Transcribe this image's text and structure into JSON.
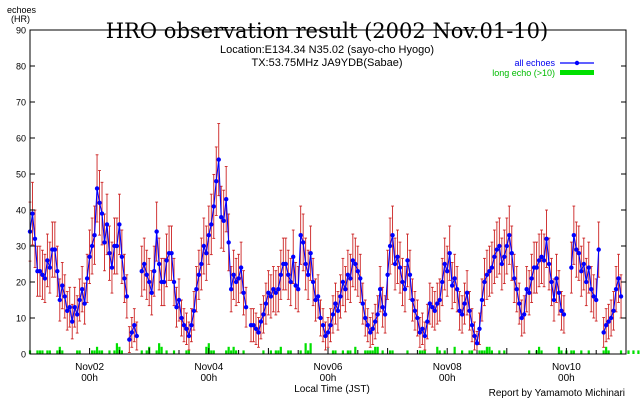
{
  "chart_data": {
    "type": "line",
    "title": "HRO observation result (2002 Nov.01-10)",
    "subtitle_lines": [
      "Location:E134.34 N35.02 (sayo-cho Hyogo)",
      "TX:53.75MHz JA9YDB(Sabae)"
    ],
    "ylabel_lines": [
      "echoes",
      "(HR)"
    ],
    "xlabel": "Local Time (JST)",
    "credit": "Report by Yamamoto Michinari",
    "ylim": [
      0,
      90
    ],
    "yticks": [
      0,
      10,
      20,
      30,
      40,
      50,
      60,
      70,
      80,
      90
    ],
    "xlim_hours": [
      0,
      240
    ],
    "xtick_labels": [
      {
        "hour": 24,
        "date": "Nov02",
        "time": "00h"
      },
      {
        "hour": 72,
        "date": "Nov04",
        "time": "00h"
      },
      {
        "hour": 120,
        "date": "Nov06",
        "time": "00h"
      },
      {
        "hour": 168,
        "date": "Nov08",
        "time": "00h"
      },
      {
        "hour": 216,
        "date": "Nov10",
        "time": "00h"
      }
    ],
    "legend_position": "top-right",
    "series": [
      {
        "name": "all echoes",
        "color": "#0000ff",
        "error_color": "#cc2222",
        "segments": [
          {
            "start_hour": 0,
            "values": [
              34,
              39,
              32,
              23,
              23,
              22,
              21,
              26,
              24,
              29,
              29,
              23,
              15,
              19,
              16,
              12,
              13,
              9,
              13,
              11,
              15,
              18,
              14,
              21,
              27,
              30,
              33,
              46,
              42,
              39,
              31,
              36,
              28,
              24,
              30,
              30,
              36,
              27,
              21,
              16
            ]
          },
          {
            "start_hour": 40,
            "values": [
              4,
              6,
              8,
              5
            ]
          },
          {
            "start_hour": 45,
            "values": [
              23,
              25,
              22,
              20,
              17,
              23,
              34,
              25,
              20,
              20,
              26,
              28,
              28,
              20,
              13,
              15,
              10,
              8,
              7,
              5,
              8,
              12,
              18,
              22,
              25,
              30,
              28,
              33,
              36,
              41,
              48,
              54,
              38,
              37,
              43,
              31,
              18,
              22,
              20,
              21,
              24,
              17,
              13
            ]
          },
          {
            "start_hour": 89,
            "values": [
              8,
              8,
              7,
              6,
              9,
              11,
              14,
              17,
              16,
              18,
              17,
              18,
              22,
              25,
              25,
              22,
              20,
              27,
              19,
              18,
              33,
              31,
              25,
              22,
              28,
              20,
              15,
              16,
              10
            ]
          },
          {
            "start_hour": 118,
            "values": [
              8,
              5,
              6,
              8,
              11,
              14,
              12,
              16,
              20,
              18,
              22,
              21,
              26,
              25,
              23,
              21,
              14,
              10,
              8,
              6,
              7,
              9,
              11,
              18,
              13,
              11,
              22,
              30,
              33,
              25,
              27,
              24,
              20,
              18,
              26,
              22,
              15,
              12,
              10,
              6,
              7,
              5,
              9,
              14,
              13,
              12,
              14,
              15,
              20,
              25,
              23,
              28,
              19,
              21,
              18,
              12,
              11,
              14,
              17,
              12,
              8,
              5,
              3,
              7,
              15,
              20,
              22,
              23,
              24,
              27,
              29,
              30,
              25,
              27,
              30,
              33,
              28,
              21,
              18,
              14,
              10,
              11,
              18,
              17,
              21,
              24,
              24,
              26,
              27,
              26,
              32,
              25,
              20,
              15,
              21,
              17,
              12,
              11
            ]
          },
          {
            "start_hour": 218,
            "values": [
              24,
              33,
              29,
              28,
              23,
              25,
              20,
              24,
              18,
              16,
              15,
              29
            ]
          },
          {
            "start_hour": 231,
            "values": [
              6,
              8,
              9,
              10,
              12,
              18,
              21,
              16
            ]
          }
        ]
      },
      {
        "name": "long echo (>10)",
        "color": "#00e000",
        "start_hour": 0,
        "values": [
          1,
          0,
          0,
          1,
          1,
          1,
          0,
          1,
          1,
          0,
          0,
          1,
          2,
          1,
          0,
          0,
          0,
          0,
          0,
          1,
          1,
          0,
          0,
          0,
          0,
          1,
          1,
          2,
          1,
          1,
          0,
          0,
          1,
          0,
          1,
          3,
          2,
          1,
          0,
          0,
          0,
          0,
          0,
          0,
          0,
          1,
          0,
          1,
          2,
          0,
          0,
          1,
          3,
          2,
          0,
          1,
          0,
          0,
          1,
          0,
          0,
          0,
          0,
          1,
          1,
          0,
          0,
          0,
          0,
          0,
          0,
          2,
          3,
          1,
          1,
          0,
          0,
          0,
          0,
          1,
          2,
          1,
          2,
          1,
          0,
          0,
          1,
          0,
          0,
          0,
          0,
          0,
          0,
          0,
          1,
          0,
          0,
          1,
          0,
          1,
          1,
          2,
          0,
          0,
          1,
          1,
          0,
          0,
          0,
          1,
          0,
          3,
          1,
          3,
          0,
          0,
          0,
          0,
          0,
          0,
          0,
          0,
          1,
          1,
          0,
          0,
          1,
          0,
          1,
          1,
          0,
          2,
          0,
          0,
          0,
          1,
          1,
          1,
          1,
          2,
          2,
          0,
          1,
          0,
          0,
          1,
          1,
          0,
          0,
          0,
          0,
          0,
          1,
          0,
          0,
          0,
          0,
          1,
          1,
          1,
          0,
          0,
          0,
          0,
          2,
          1,
          0,
          1,
          0,
          0,
          0,
          2,
          0,
          0,
          1,
          0,
          0,
          1,
          1,
          0,
          0,
          1,
          1,
          1,
          2,
          2,
          1,
          0,
          0,
          1,
          0,
          1,
          0,
          0,
          0,
          0,
          0,
          0,
          0,
          0,
          0,
          1,
          0,
          0,
          1,
          2,
          1,
          0,
          0,
          0,
          0,
          0,
          0,
          2,
          1,
          0,
          1,
          0,
          1,
          1,
          0,
          0,
          1,
          0,
          0,
          1,
          0,
          0,
          0,
          0,
          0,
          1,
          2,
          1,
          0,
          0,
          0,
          0,
          1,
          0,
          0,
          1,
          0,
          1,
          0,
          1,
          0
        ]
      }
    ]
  }
}
